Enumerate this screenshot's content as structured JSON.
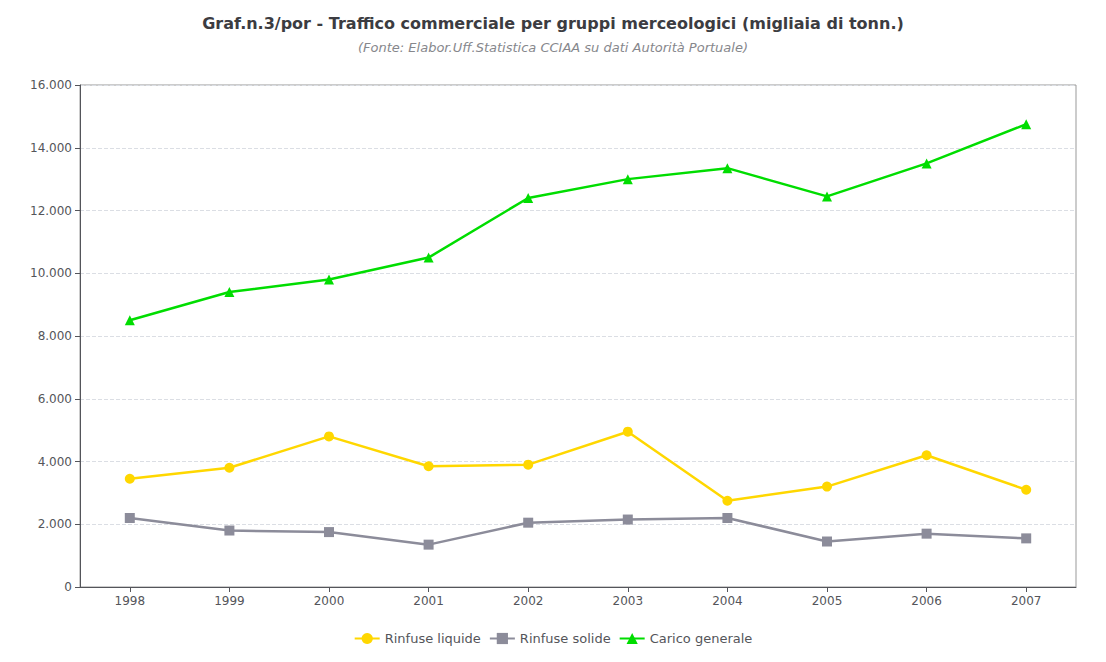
{
  "chart_data": {
    "type": "line",
    "title": "Graf.n.3/por - Traffico commerciale per gruppi merceologici (migliaia di tonn.)",
    "subtitle": "(Fonte: Elabor.Uff.Statistica CCIAA su dati Autorità Portuale)",
    "x": [
      1998,
      1999,
      2000,
      2001,
      2002,
      2003,
      2004,
      2005,
      2006,
      2007
    ],
    "series": [
      {
        "name": "Rinfuse liquide",
        "color": "#FFD700",
        "marker": "circle",
        "values": [
          3450,
          3800,
          4800,
          3850,
          3900,
          4950,
          2750,
          3200,
          4200,
          3100
        ]
      },
      {
        "name": "Rinfuse solide",
        "color": "#8C8C9A",
        "marker": "square",
        "values": [
          2200,
          1800,
          1750,
          1350,
          2050,
          2150,
          2200,
          1450,
          1700,
          1550
        ]
      },
      {
        "name": "Carico generale",
        "color": "#00DD00",
        "marker": "triangle",
        "values": [
          8500,
          9400,
          9800,
          10500,
          12400,
          13000,
          13350,
          12450,
          13500,
          14750
        ]
      }
    ],
    "xlim": [
      1997.5,
      2007.5
    ],
    "xticks": [
      1998,
      1999,
      2000,
      2001,
      2002,
      2003,
      2004,
      2005,
      2006,
      2007
    ],
    "ylim": [
      0,
      16000
    ],
    "yticks": [
      0,
      {
        "value": 2000,
        "label": "2.000"
      },
      {
        "value": 4000,
        "label": "4.000"
      },
      {
        "value": 6000,
        "label": "6.000"
      },
      {
        "value": 8000,
        "label": "8.000"
      },
      {
        "value": 10000,
        "label": "10.000"
      },
      {
        "value": 12000,
        "label": "12.000"
      },
      {
        "value": 14000,
        "label": "14.000"
      },
      {
        "value": 16000,
        "label": "16.000"
      }
    ],
    "grid": true,
    "legend": "bottom"
  }
}
